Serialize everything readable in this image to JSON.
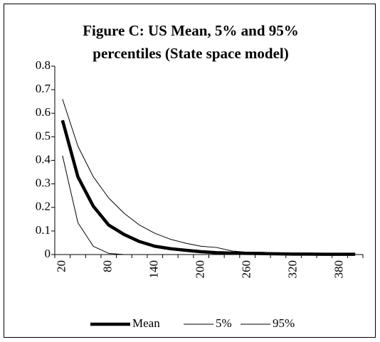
{
  "chart_data": {
    "type": "line",
    "title": [
      "Figure C: US Mean, 5%  and 95%",
      "percentiles  (State space model)"
    ],
    "categories": [
      20,
      null,
      null,
      80,
      null,
      null,
      140,
      null,
      null,
      200,
      null,
      null,
      260,
      null,
      null,
      320,
      null,
      null,
      380,
      null
    ],
    "series": [
      {
        "name": "Mean",
        "color": "#000000",
        "line_width": 4.5,
        "values": [
          0.57,
          0.33,
          0.205,
          0.125,
          0.085,
          0.055,
          0.035,
          0.025,
          0.018,
          0.012,
          0.008,
          0.006,
          0.005,
          0.004,
          0.003,
          0.002,
          0.002,
          0.001,
          0.001,
          0.001
        ]
      },
      {
        "name": "5%",
        "color": "#000000",
        "line_width": 1,
        "values": [
          0.42,
          0.135,
          0.035,
          0.005,
          0,
          0,
          0,
          0,
          0,
          0,
          0,
          0,
          0,
          0,
          0,
          0,
          0,
          0,
          0,
          0
        ]
      },
      {
        "name": "95%",
        "color": "#000000",
        "line_width": 1,
        "values": [
          0.66,
          0.46,
          0.33,
          0.24,
          0.175,
          0.125,
          0.09,
          0.065,
          0.048,
          0.035,
          0.03,
          0.015,
          0.01,
          0.01,
          0.005,
          0.005,
          0.004,
          0.002,
          0.002,
          0.002
        ]
      }
    ],
    "ylim": [
      0,
      0.8
    ],
    "yticks": [
      0,
      0.1,
      0.2,
      0.3,
      0.4,
      0.5,
      0.6,
      0.7,
      0.8
    ],
    "grid": false,
    "legend": "bottom"
  }
}
